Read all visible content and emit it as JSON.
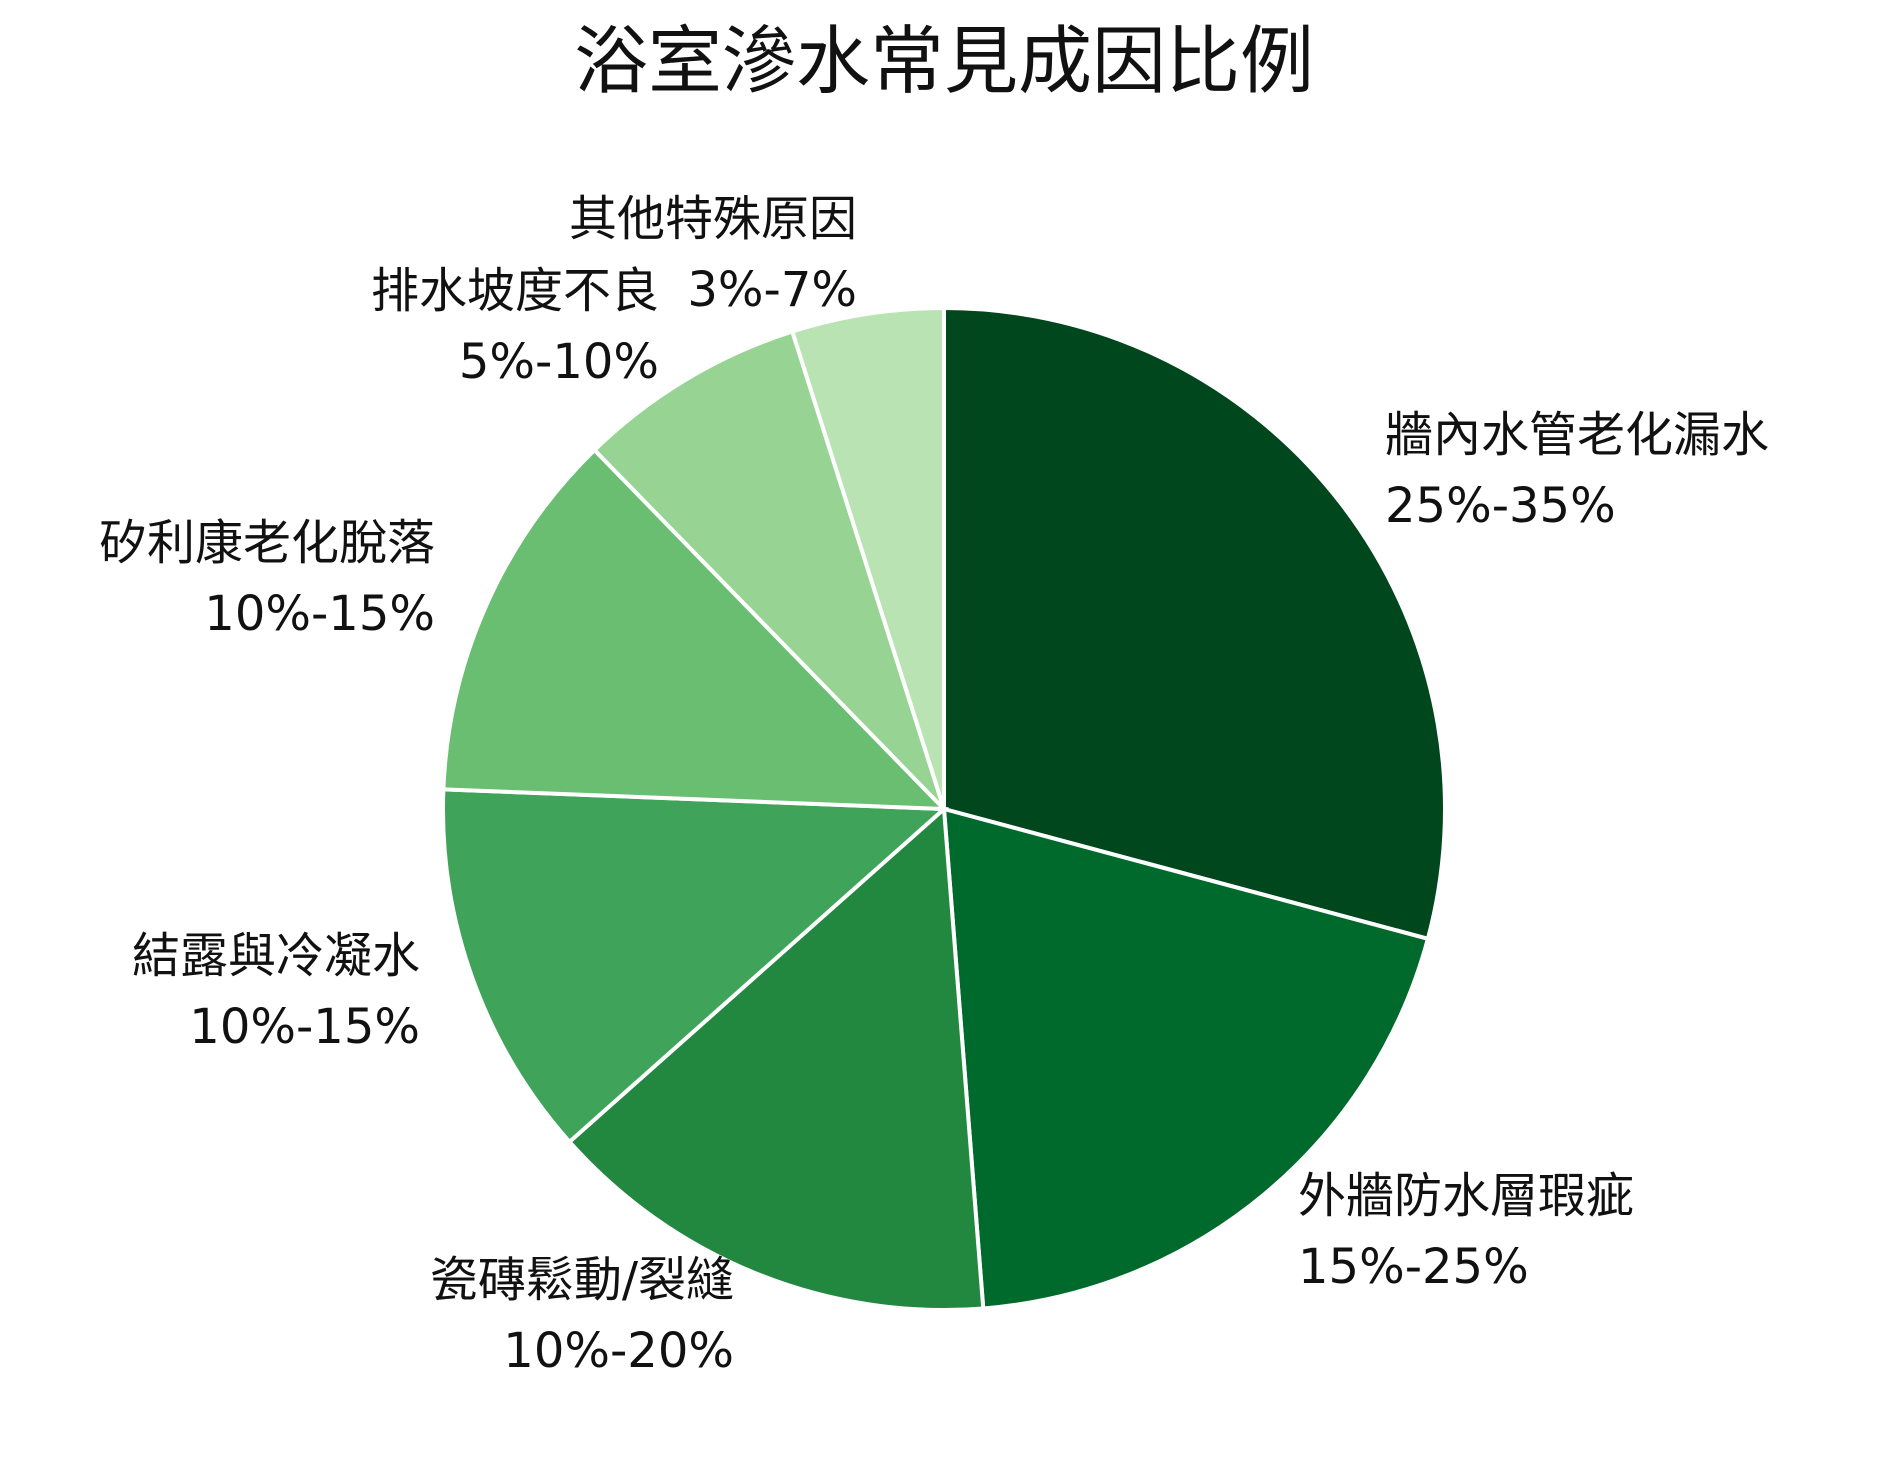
{
  "chart_data": {
    "type": "pie",
    "title": "浴室滲水常見成因比例",
    "categories": [
      "牆內水管老化漏水",
      "外牆防水層瑕疵",
      "瓷磚鬆動/裂縫",
      "結露與冷凝水",
      "矽利康老化脫落",
      "排水坡度不良",
      "其他特殊原因"
    ],
    "values": [
      29.2,
      19.6,
      14.7,
      12.2,
      12.1,
      7.4,
      4.9
    ],
    "value_labels": [
      "25%-35%",
      "15%-25%",
      "10%-20%",
      "10%-15%",
      "10%-15%",
      "5%-10%",
      "3%-7%"
    ],
    "colors": [
      "#00471e",
      "#006a2d",
      "#22883f",
      "#40a35a",
      "#6abe71",
      "#97d393",
      "#b9e3b3"
    ]
  }
}
